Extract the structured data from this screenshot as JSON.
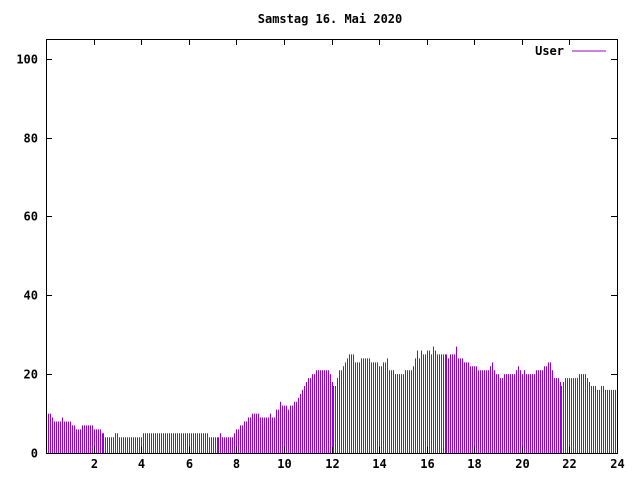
{
  "chart_data": {
    "type": "bar",
    "title": "Samstag 16. Mai 2020",
    "xlabel": "",
    "ylabel": "",
    "xlim": [
      0,
      24
    ],
    "ylim": [
      0,
      105
    ],
    "x_ticks": [
      2,
      4,
      6,
      8,
      10,
      12,
      14,
      16,
      18,
      20,
      22,
      24
    ],
    "x_tick_labels": [
      "2",
      "4",
      "6",
      "8",
      "10",
      "12",
      "14",
      "16",
      "18",
      "20",
      "22",
      "24"
    ],
    "y_ticks": [
      0,
      20,
      40,
      60,
      80,
      100
    ],
    "y_tick_labels": [
      "0",
      "20",
      "40",
      "60",
      "80",
      "100"
    ],
    "grid": false,
    "legend_position": "top-right",
    "series": [
      {
        "name": "User",
        "color": "#9400d3",
        "interval_minutes": 5,
        "values": [
          11,
          10,
          10,
          9,
          8,
          8,
          8,
          8,
          9,
          8,
          8,
          8,
          8,
          7,
          7,
          6,
          6,
          6,
          7,
          7,
          7,
          7,
          7,
          7,
          6,
          6,
          6,
          6,
          5,
          5,
          4,
          4,
          4,
          4,
          4,
          5,
          5,
          4,
          4,
          4,
          4,
          4,
          4,
          4,
          4,
          4,
          4,
          4,
          4,
          5,
          5,
          5,
          5,
          5,
          5,
          5,
          5,
          5,
          5,
          5,
          5,
          5,
          5,
          5,
          5,
          5,
          5,
          5,
          5,
          5,
          5,
          5,
          5,
          5,
          5,
          5,
          5,
          5,
          5,
          5,
          5,
          5,
          4,
          4,
          4,
          4,
          4,
          4,
          5,
          4,
          4,
          4,
          4,
          4,
          4,
          5,
          6,
          6,
          7,
          7,
          8,
          8,
          9,
          9,
          10,
          10,
          10,
          10,
          9,
          9,
          9,
          9,
          9,
          10,
          9,
          9,
          11,
          11,
          13,
          12,
          12,
          12,
          11,
          12,
          12,
          13,
          13,
          14,
          15,
          16,
          17,
          18,
          19,
          19,
          20,
          20,
          21,
          21,
          21,
          21,
          21,
          21,
          21,
          20,
          18,
          17,
          17,
          19,
          21,
          21,
          22,
          23,
          24,
          25,
          25,
          25,
          23,
          23,
          23,
          24,
          24,
          24,
          24,
          24,
          23,
          23,
          23,
          23,
          22,
          22,
          23,
          23,
          24,
          21,
          21,
          21,
          20,
          20,
          20,
          20,
          20,
          21,
          21,
          21,
          21,
          22,
          24,
          26,
          24,
          26,
          25,
          25,
          26,
          26,
          25,
          27,
          26,
          25,
          25,
          25,
          25,
          25,
          25,
          24,
          25,
          25,
          25,
          27,
          24,
          24,
          24,
          23,
          23,
          23,
          22,
          22,
          22,
          22,
          21,
          21,
          21,
          21,
          21,
          21,
          22,
          23,
          21,
          20,
          20,
          19,
          19,
          20,
          20,
          20,
          20,
          20,
          20,
          21,
          22,
          21,
          20,
          21,
          20,
          20,
          20,
          20,
          20,
          21,
          21,
          21,
          21,
          22,
          22,
          23,
          23,
          21,
          19,
          19,
          19,
          18,
          17,
          18,
          19,
          19,
          19,
          19,
          19,
          19,
          19,
          20,
          20,
          20,
          20,
          19,
          18,
          17,
          17,
          17,
          16,
          16,
          17,
          17,
          16,
          16,
          16,
          16,
          16,
          16
        ]
      }
    ]
  }
}
